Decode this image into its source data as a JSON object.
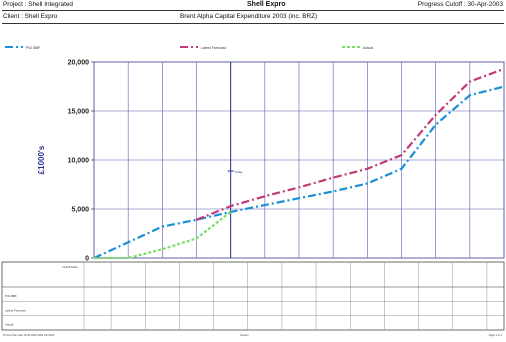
{
  "header": {
    "project": "Project : Shell Integrated",
    "company": "Shell Expro",
    "cutoff": "Progress Cutoff : 30-Apr-2003",
    "client": "Client : Shell Expro",
    "subtitle": "Brent Alpha Capital Expenditure 2003 (inc. BRZ)"
  },
  "chart_data": {
    "type": "line",
    "title": "Brent Alpha Capital Expenditure 2003 (inc. BRZ)",
    "xlabel": "",
    "ylabel": "£1000's",
    "ylim": [
      0,
      20000
    ],
    "y_ticks": [
      0,
      5000,
      10000,
      15000,
      20000
    ],
    "y_tick_labels": [
      "0",
      "5,000",
      "10,000",
      "15,000",
      "20,000"
    ],
    "x": [
      0,
      1,
      2,
      3,
      4,
      5,
      6,
      7,
      8,
      9,
      10,
      11,
      12
    ],
    "grid": true,
    "legend_position": "top",
    "cutoff_marker_label": "Today",
    "series": [
      {
        "name": "P\\G BBF",
        "color": "#1a8fd6",
        "dash": "8,3,2,3",
        "values": [
          0,
          1600,
          3200,
          3900,
          4700,
          5400,
          6100,
          6800,
          7600,
          9100,
          13600,
          16600,
          17500
        ]
      },
      {
        "name": "Latest Forecast",
        "color": "#c03a78",
        "dash": "8,3,2,3",
        "values": [
          null,
          null,
          null,
          3900,
          5300,
          6300,
          7200,
          8200,
          9100,
          10500,
          14600,
          18000,
          19300
        ]
      },
      {
        "name": "Actual",
        "color": "#7edc6a",
        "dash": "3,2",
        "values": [
          0,
          0,
          900,
          2000,
          4700,
          null,
          null,
          null,
          null,
          null,
          null,
          null,
          null
        ]
      }
    ]
  },
  "table": {
    "header_label": "Cutoff Date",
    "row_labels": [
      "P\\G BBF",
      "Latest Forecast",
      "Actual"
    ]
  },
  "footer": {
    "left": "N:\\Cost Plan Mar 10-05-2003 2003 CE 2003",
    "center": "Version",
    "right": "Page 1 of 1"
  }
}
